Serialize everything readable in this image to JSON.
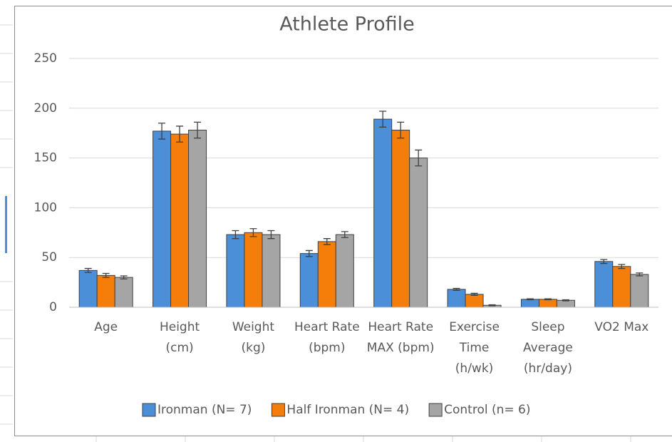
{
  "chart_data": {
    "type": "bar",
    "title": "Athlete Profile",
    "categories": [
      "Age",
      "Height (cm)",
      "Weight (kg)",
      "Heart Rate (bpm)",
      "Heart Rate MAX (bpm)",
      "Exercise Time (h/wk)",
      "Sleep Average (hr/day)",
      "VO2 Max"
    ],
    "series": [
      {
        "name": "Ironman (N= 7)",
        "color": "#4a8fd8",
        "values": [
          37,
          177,
          73,
          54,
          189,
          18,
          8,
          46
        ],
        "errors": [
          2,
          8,
          4,
          3,
          8,
          1,
          0.5,
          2
        ]
      },
      {
        "name": "Half Ironman (N= 4)",
        "color": "#f57e0b",
        "values": [
          32,
          174,
          75,
          66,
          178,
          13,
          8,
          41
        ],
        "errors": [
          2,
          8,
          4,
          3,
          8,
          1,
          0.5,
          2
        ]
      },
      {
        "name": "Control (n= 6)",
        "color": "#a5a5a5",
        "values": [
          30,
          178,
          73,
          73,
          150,
          2,
          7,
          33
        ],
        "errors": [
          1.5,
          8,
          4,
          3,
          8,
          0.5,
          0.5,
          1.5
        ]
      }
    ],
    "ylim": [
      0,
      250
    ],
    "yticks": [
      0,
      50,
      100,
      150,
      200,
      250
    ],
    "grid": true,
    "legend": "bottom"
  }
}
